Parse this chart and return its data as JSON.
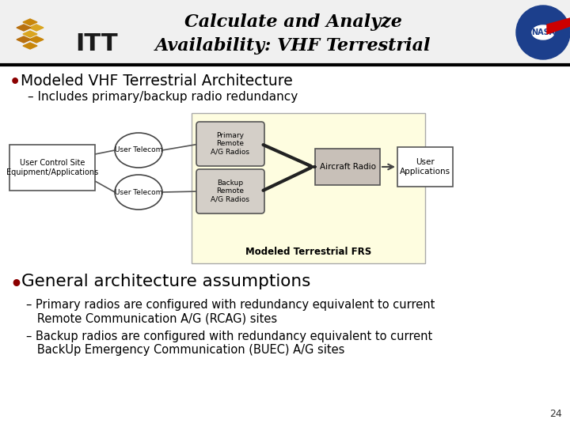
{
  "title_line1": "Calculate and Analyze",
  "title_line2": "Availability: VHF Terrestrial",
  "bg_color": "#FFFFFF",
  "header_bg": "#F0F0F0",
  "bullet1_text": "Modeled VHF Terrestrial Architecture",
  "sub1_text": "– Includes primary/backup radio redundancy",
  "diagram_bg": "#FEFDE0",
  "diagram_label": "Modeled Terrestrial FRS",
  "box_user_control": "User Control Site\nEquipment/Applications",
  "circle_top": "User Telecom",
  "circle_bottom": "User Telecom",
  "box_primary": "Primary\nRemote\nA/G Radios",
  "box_backup": "Backup\nRemote\nA/G Radios",
  "box_aircraft": "Aircraft Radio",
  "box_user_app": "User\nApplications",
  "bullet2_text": "General architecture assumptions",
  "sub2a_line1": "– Primary radios are configured with redundancy equivalent to current",
  "sub2a_line2": "   Remote Communication A/G (RCAG) sites",
  "sub2b_line1": "– Backup radios are configured with redundancy equivalent to current",
  "sub2b_line2": "   BackUp Emergency Communication (BUEC) A/G sites",
  "page_number": "24",
  "bullet_color": "#8B0000",
  "text_color": "#000000",
  "title_color": "#000000",
  "header_line_color": "#000000"
}
